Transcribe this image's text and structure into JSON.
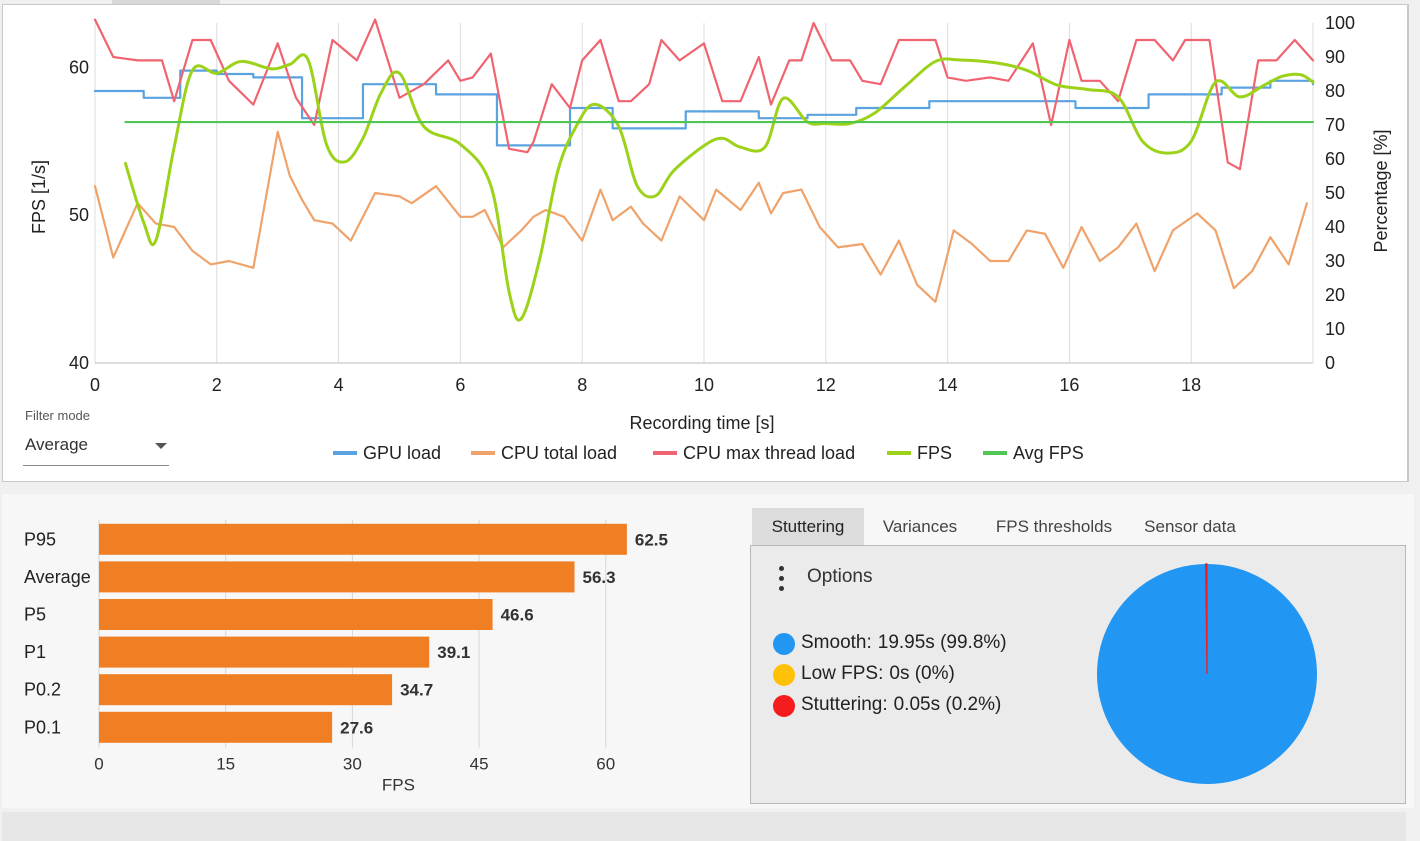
{
  "chart_data": [
    {
      "type": "line",
      "xlabel": "Recording time [s]",
      "ylabel_left": "FPS [1/s]",
      "ylabel_right": "Percentage [%]",
      "xlim": [
        0,
        20
      ],
      "ylim_left": [
        40,
        63
      ],
      "ylim_right": [
        0,
        100
      ],
      "x_ticks": [
        0,
        2,
        4,
        6,
        8,
        10,
        12,
        14,
        16,
        18
      ],
      "y_ticks_left": [
        40,
        50,
        60
      ],
      "y_ticks_right": [
        0,
        10,
        20,
        30,
        40,
        50,
        60,
        70,
        80,
        90,
        100
      ],
      "grid": true,
      "legend_position": "bottom-center",
      "series": [
        {
          "name": "GPU load",
          "axis": "right",
          "color": "#5aa3e0",
          "step": true,
          "x": [
            0,
            0.4,
            0.8,
            1.1,
            1.4,
            1.7,
            2.0,
            2.3,
            2.6,
            3.0,
            3.4,
            3.7,
            4.0,
            4.4,
            4.8,
            5.2,
            5.6,
            5.9,
            6.2,
            6.6,
            7.0,
            7.4,
            7.8,
            8.1,
            8.5,
            8.9,
            9.3,
            9.7,
            10.1,
            10.5,
            10.9,
            11.3,
            11.7,
            12.1,
            12.5,
            12.9,
            13.3,
            13.7,
            14.1,
            14.5,
            14.9,
            15.3,
            15.7,
            16.1,
            16.5,
            16.9,
            17.3,
            17.7,
            18.1,
            18.5,
            18.9,
            19.3,
            19.7,
            20.0
          ],
          "y": [
            80,
            80,
            78,
            78,
            86,
            86,
            85,
            85,
            84,
            84,
            72,
            72,
            72,
            82,
            82,
            82,
            79,
            79,
            79,
            64,
            64,
            64,
            75,
            75,
            69,
            69,
            69,
            74,
            74,
            74,
            72,
            72,
            73,
            73,
            75,
            75,
            75,
            77,
            77,
            77,
            77,
            77,
            77,
            75,
            75,
            75,
            79,
            79,
            79,
            81,
            81,
            83,
            83,
            82
          ]
        },
        {
          "name": "CPU total load",
          "axis": "right",
          "color": "#efa36b",
          "x": [
            0,
            0.3,
            0.7,
            1.0,
            1.3,
            1.6,
            1.9,
            2.2,
            2.6,
            3.0,
            3.2,
            3.4,
            3.6,
            3.9,
            4.2,
            4.6,
            5.0,
            5.2,
            5.6,
            6.0,
            6.2,
            6.4,
            6.7,
            7.0,
            7.2,
            7.4,
            7.7,
            8.0,
            8.3,
            8.5,
            8.8,
            9.0,
            9.3,
            9.6,
            10.0,
            10.2,
            10.6,
            10.9,
            11.1,
            11.3,
            11.6,
            11.9,
            12.2,
            12.6,
            12.9,
            13.2,
            13.5,
            13.8,
            14.1,
            14.4,
            14.7,
            15.0,
            15.3,
            15.6,
            15.9,
            16.2,
            16.5,
            16.8,
            17.1,
            17.4,
            17.7,
            18.1,
            18.4,
            18.7,
            19.0,
            19.3,
            19.6,
            19.9
          ],
          "y": [
            52,
            31,
            47,
            41,
            40,
            33,
            29,
            30,
            28,
            68,
            55,
            48,
            42,
            41,
            36,
            50,
            49,
            47,
            52,
            43,
            43,
            45,
            34,
            39,
            43,
            45,
            43,
            36,
            51,
            42,
            46,
            41,
            36,
            49,
            42,
            51,
            45,
            53,
            44,
            50,
            51,
            40,
            34,
            35,
            26,
            36,
            23,
            18,
            39,
            35,
            30,
            30,
            39,
            38,
            28,
            40,
            30,
            34,
            41,
            27,
            39,
            44,
            39,
            22,
            27,
            37,
            29,
            47
          ]
        },
        {
          "name": "CPU max thread load",
          "axis": "right",
          "color": "#ef6470",
          "x": [
            0,
            0.3,
            0.7,
            1.1,
            1.3,
            1.6,
            1.9,
            2.2,
            2.6,
            3.0,
            3.3,
            3.6,
            3.9,
            4.3,
            4.6,
            5.0,
            5.4,
            5.8,
            6.0,
            6.2,
            6.5,
            6.8,
            7.1,
            7.2,
            7.5,
            7.8,
            8.0,
            8.3,
            8.6,
            8.8,
            9.1,
            9.3,
            9.6,
            10.0,
            10.3,
            10.6,
            10.9,
            11.1,
            11.4,
            11.6,
            11.8,
            12.1,
            12.4,
            12.6,
            12.9,
            13.2,
            13.5,
            13.8,
            14.0,
            14.3,
            14.7,
            15.0,
            15.4,
            15.7,
            16.0,
            16.2,
            16.5,
            16.8,
            17.1,
            17.4,
            17.7,
            17.9,
            18.3,
            18.6,
            18.8,
            19.1,
            19.4,
            19.7,
            20.0
          ],
          "y": [
            101,
            90,
            89,
            89,
            77,
            95,
            95,
            83,
            76,
            94,
            78,
            70,
            95,
            89,
            101,
            78,
            82,
            89,
            83,
            84,
            91,
            63,
            62,
            65,
            82,
            75,
            89,
            95,
            77,
            77,
            82,
            95,
            89,
            94,
            77,
            77,
            90,
            76,
            89,
            89,
            100,
            89,
            89,
            83,
            82,
            95,
            95,
            95,
            84,
            83,
            84,
            83,
            94,
            70,
            95,
            83,
            83,
            77,
            95,
            95,
            89,
            95,
            95,
            59,
            57,
            89,
            89,
            95,
            89
          ]
        },
        {
          "name": "FPS",
          "axis": "left",
          "color": "#9cd21a",
          "smooth": true,
          "x": [
            0.5,
            0.8,
            1.0,
            1.3,
            1.6,
            2.0,
            2.4,
            2.9,
            3.2,
            3.5,
            3.8,
            4.1,
            4.4,
            4.7,
            5.0,
            5.4,
            6.0,
            6.5,
            6.8,
            7.0,
            7.3,
            7.6,
            7.9,
            8.2,
            8.6,
            8.9,
            9.2,
            9.5,
            10.0,
            10.3,
            10.6,
            11.0,
            11.3,
            11.7,
            12.0,
            12.4,
            12.8,
            13.3,
            13.8,
            14.2,
            14.8,
            15.3,
            15.8,
            16.3,
            16.8,
            17.2,
            17.6,
            18.0,
            18.4,
            18.8,
            19.2,
            19.5,
            19.8,
            20.0
          ],
          "y": [
            53.5,
            49.5,
            48.3,
            54.6,
            59.8,
            59.6,
            60.4,
            59.9,
            60.2,
            60.5,
            54.8,
            53.6,
            55.2,
            58.3,
            59.6,
            56.0,
            54.8,
            52.0,
            44.8,
            43.0,
            47.0,
            53.0,
            56.0,
            57.5,
            56.0,
            52.0,
            51.3,
            53.0,
            54.7,
            55.2,
            54.6,
            54.6,
            57.9,
            56.3,
            56.2,
            56.2,
            56.9,
            58.7,
            60.4,
            60.5,
            60.3,
            59.8,
            58.8,
            58.5,
            58.0,
            55.0,
            54.2,
            55.0,
            59.0,
            58.0,
            58.8,
            59.4,
            59.5,
            59.0
          ]
        },
        {
          "name": "Avg FPS",
          "axis": "left",
          "color": "#50c755",
          "x": [
            0.5,
            20.0
          ],
          "y": [
            56.3,
            56.3
          ]
        }
      ]
    },
    {
      "type": "bar",
      "orientation": "horizontal",
      "color": "#f07f23",
      "categories": [
        "P95",
        "Average",
        "P5",
        "P1",
        "P0.2",
        "P0.1"
      ],
      "values": [
        62.5,
        56.3,
        46.6,
        39.1,
        34.7,
        27.6
      ],
      "value_labels": [
        "62.5",
        "56.3",
        "46.6",
        "39.1",
        "34.7",
        "27.6"
      ],
      "xlabel": "FPS",
      "xlim": [
        0,
        65
      ],
      "x_ticks": [
        0,
        15,
        30,
        45,
        60
      ],
      "grid": true
    },
    {
      "type": "pie",
      "labels": [
        "Smooth",
        "Low FPS",
        "Stuttering"
      ],
      "values": [
        99.8,
        0,
        0.2
      ],
      "colors": [
        "#2196f3",
        "#ffc107",
        "#f41c1c"
      ]
    }
  ],
  "filter": {
    "label": "Filter mode",
    "value": "Average"
  },
  "tabs": [
    {
      "label": "Stuttering",
      "active": true
    },
    {
      "label": "Variances",
      "active": false
    },
    {
      "label": "FPS thresholds",
      "active": false
    },
    {
      "label": "Sensor data",
      "active": false
    }
  ],
  "stuttering": {
    "options_label": "Options",
    "legend": [
      {
        "label": "Smooth:",
        "value": "19.95s (99.8%)",
        "color": "#2196f3"
      },
      {
        "label": "Low FPS:",
        "value": "0s (0%)",
        "color": "#ffc107"
      },
      {
        "label": "Stuttering:",
        "value": "0.05s (0.2%)",
        "color": "#f41c1c"
      }
    ]
  }
}
